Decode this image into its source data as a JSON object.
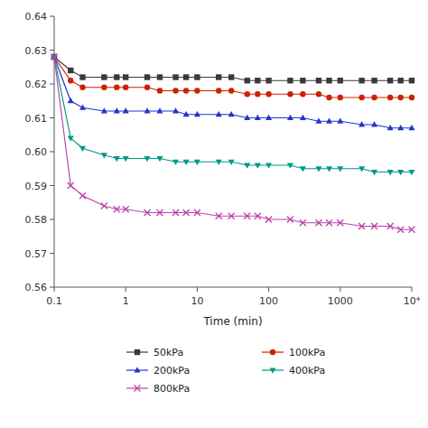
{
  "chart_data": {
    "type": "line",
    "xlabel": "Time (min)",
    "log": "x",
    "grid": false,
    "legend": "bottom",
    "xlim": [
      0.1,
      10000
    ],
    "xticks": [
      0.1,
      1,
      10,
      100,
      1000,
      {
        "value": 10000,
        "label": "10⁴"
      }
    ],
    "ylim": [
      0.56,
      0.64
    ],
    "yticks": [
      0.56,
      0.57,
      0.58,
      0.59,
      {
        "value": 0.6,
        "label": "0.60"
      },
      0.61,
      0.62,
      0.63,
      0.64
    ],
    "x": [
      0.1,
      0.17,
      0.25,
      0.5,
      0.75,
      1.0,
      2.0,
      3.0,
      5.0,
      7.0,
      10.0,
      20.0,
      30.0,
      50.0,
      70.0,
      100.0,
      200.0,
      300.0,
      500.0,
      700.0,
      1000.0,
      2000.0,
      3000.0,
      5000.0,
      7000.0,
      10000.0
    ],
    "series": [
      {
        "name": "50kPa",
        "color": "#3a3a3a",
        "marker": "square",
        "values": [
          0.628,
          0.624,
          0.622,
          0.622,
          0.622,
          0.622,
          0.622,
          0.622,
          0.622,
          0.622,
          0.622,
          0.622,
          0.622,
          0.621,
          0.621,
          0.621,
          0.621,
          0.621,
          0.621,
          0.621,
          0.621,
          0.621,
          0.621,
          0.621,
          0.621,
          0.621
        ]
      },
      {
        "name": "100kPa",
        "color": "#cc2200",
        "marker": "circle",
        "values": [
          0.628,
          0.621,
          0.619,
          0.619,
          0.619,
          0.619,
          0.619,
          0.618,
          0.618,
          0.618,
          0.618,
          0.618,
          0.618,
          0.617,
          0.617,
          0.617,
          0.617,
          0.617,
          0.617,
          0.616,
          0.616,
          0.616,
          0.616,
          0.616,
          0.616,
          0.616
        ]
      },
      {
        "name": "200kPa",
        "color": "#2233cc",
        "marker": "triangle-up",
        "values": [
          0.628,
          0.615,
          0.613,
          0.612,
          0.612,
          0.612,
          0.612,
          0.612,
          0.612,
          0.611,
          0.611,
          0.611,
          0.611,
          0.61,
          0.61,
          0.61,
          0.61,
          0.61,
          0.609,
          0.609,
          0.609,
          0.608,
          0.608,
          0.607,
          0.607,
          0.607
        ]
      },
      {
        "name": "400kPa",
        "color": "#009988",
        "marker": "triangle-down",
        "values": [
          0.628,
          0.604,
          0.601,
          0.599,
          0.598,
          0.598,
          0.598,
          0.598,
          0.597,
          0.597,
          0.597,
          0.597,
          0.597,
          0.596,
          0.596,
          0.596,
          0.596,
          0.595,
          0.595,
          0.595,
          0.595,
          0.595,
          0.594,
          0.594,
          0.594,
          0.594
        ]
      },
      {
        "name": "800kPa",
        "color": "#bb44aa",
        "marker": "x",
        "values": [
          0.628,
          0.59,
          0.587,
          0.584,
          0.583,
          0.583,
          0.582,
          0.582,
          0.582,
          0.582,
          0.582,
          0.581,
          0.581,
          0.581,
          0.581,
          0.58,
          0.58,
          0.579,
          0.579,
          0.579,
          0.579,
          0.578,
          0.578,
          0.578,
          0.577,
          0.577
        ]
      }
    ]
  }
}
